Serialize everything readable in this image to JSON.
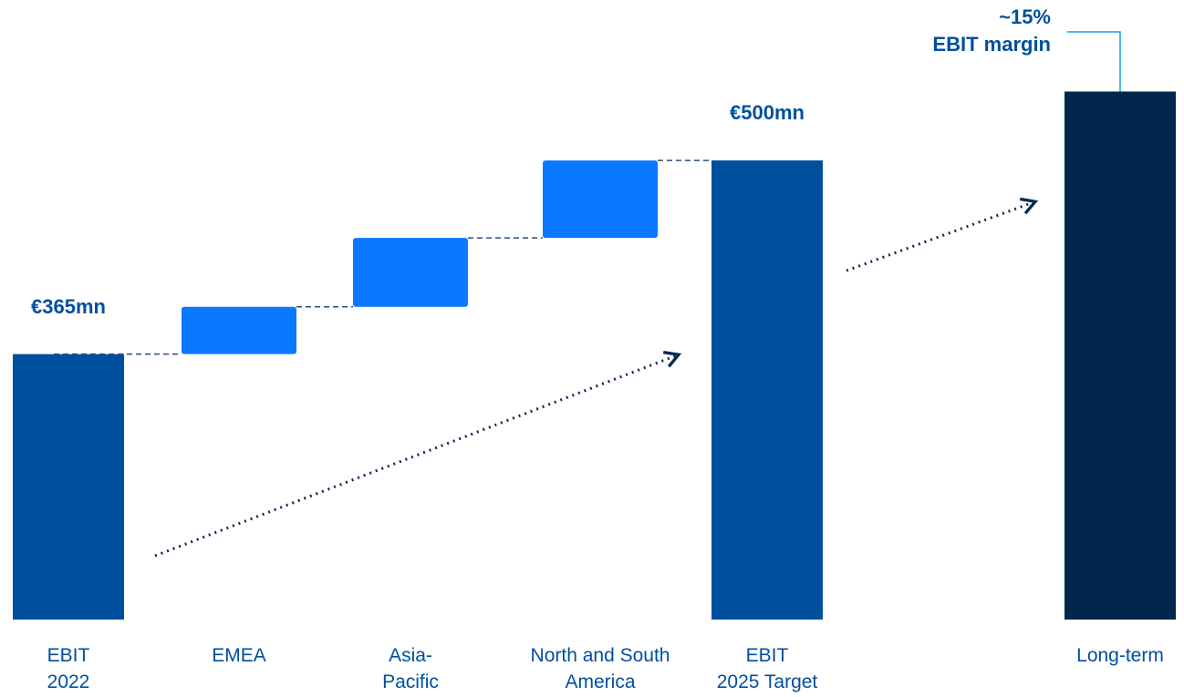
{
  "chart_data": {
    "type": "waterfall",
    "categories": [
      "EBIT\n2022",
      "EMEA",
      "Asia-\nPacific",
      "North and South\nAmerica",
      "EBIT\n2025 Target",
      "Long-term"
    ],
    "values": [
      365,
      33,
      48,
      54,
      500,
      548
    ],
    "value_labels": [
      "€365mn",
      null,
      null,
      null,
      "€500mn",
      null
    ],
    "measures": [
      "absolute",
      "relative",
      "relative",
      "relative",
      "total",
      "absolute"
    ],
    "colors": [
      "#004f9f",
      "#0a78ff",
      "#0a78ff",
      "#0a78ff",
      "#004f9f",
      "#00264d"
    ],
    "ylim": [
      180,
      560
    ],
    "annotation": "~15%\nEBIT margin"
  }
}
